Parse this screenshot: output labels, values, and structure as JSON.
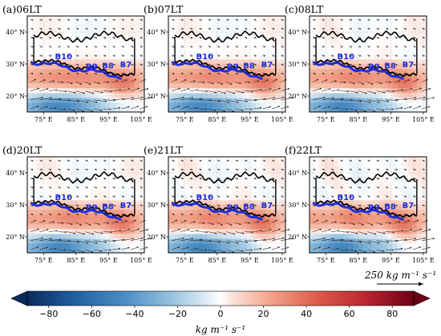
{
  "chart_data": {
    "type": "heatmap",
    "panels": [
      {
        "id": "a",
        "title": "(a)06LT"
      },
      {
        "id": "b",
        "title": "(b)07LT"
      },
      {
        "id": "c",
        "title": "(c)08LT"
      },
      {
        "id": "d",
        "title": "(d)20LT"
      },
      {
        "id": "e",
        "title": "(e)21LT"
      },
      {
        "id": "f",
        "title": "(f)22LT"
      }
    ],
    "lon_ticks": [
      75,
      85,
      95,
      105
    ],
    "lon_tick_labels": [
      "75° E",
      "85° E",
      "95° E",
      "105° E"
    ],
    "lat_ticks": [
      20,
      30,
      40
    ],
    "lat_tick_labels": [
      "20° N",
      "30° N",
      "40° N"
    ],
    "lon_range": [
      70,
      106
    ],
    "lat_range": [
      15,
      45
    ],
    "basin_labels": [
      {
        "name": "B10",
        "lon": 78.5,
        "lat": 31.5
      },
      {
        "name": "B9",
        "lon": 88.0,
        "lat": 28.4
      },
      {
        "name": "B8",
        "lon": 93.0,
        "lat": 28.6
      },
      {
        "name": "B7",
        "lon": 98.5,
        "lat": 29.0
      }
    ],
    "reference_vector": {
      "magnitude": 250,
      "label": "250 kg m⁻¹ s⁻¹"
    },
    "colorbar": {
      "min": -90,
      "max": 90,
      "ticks": [
        -80,
        -60,
        -40,
        -20,
        0,
        20,
        40,
        60,
        80
      ],
      "tick_labels": [
        "−80",
        "−60",
        "−40",
        "−20",
        "0",
        "20",
        "40",
        "60",
        "80"
      ],
      "extend": "both",
      "units": "kg  m⁻¹  s⁻¹",
      "colormap": "RdBu_r"
    }
  }
}
